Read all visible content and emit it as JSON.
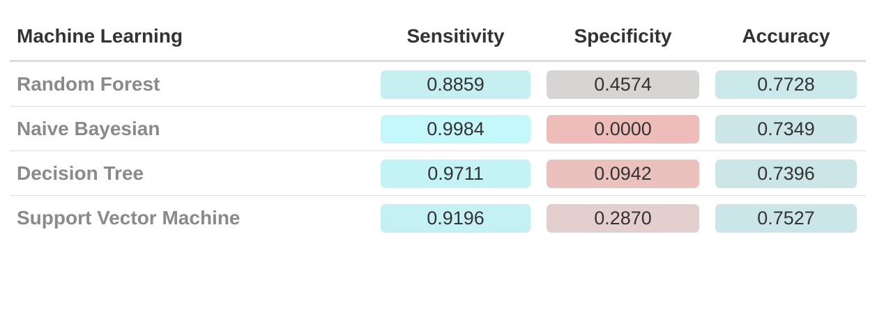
{
  "chart_data": {
    "type": "table",
    "columns": [
      "Machine Learning",
      "Sensitivity",
      "Specificity",
      "Accuracy"
    ],
    "rows": [
      {
        "model": "Random Forest",
        "sensitivity": "0.8859",
        "specificity": "0.4574",
        "accuracy": "0.7728"
      },
      {
        "model": "Naive Bayesian",
        "sensitivity": "0.9984",
        "specificity": "0.0000",
        "accuracy": "0.7349"
      },
      {
        "model": "Decision Tree",
        "sensitivity": "0.9711",
        "specificity": "0.0942",
        "accuracy": "0.7396"
      },
      {
        "model": "Support Vector Machine",
        "sensitivity": "0.9196",
        "specificity": "0.2870",
        "accuracy": "0.7527"
      }
    ],
    "cell_colors": {
      "sensitivity": [
        "#c5eff1",
        "#c4f8fa",
        "#c4f3f6",
        "#c4f1f4"
      ],
      "specificity": [
        "#d6d5d4",
        "#eebdb9",
        "#ebc1bd",
        "#e3cfcd"
      ],
      "accuracy": [
        "#cbe8ea",
        "#cce5e7",
        "#cce5e7",
        "#cbe6e8"
      ]
    }
  }
}
